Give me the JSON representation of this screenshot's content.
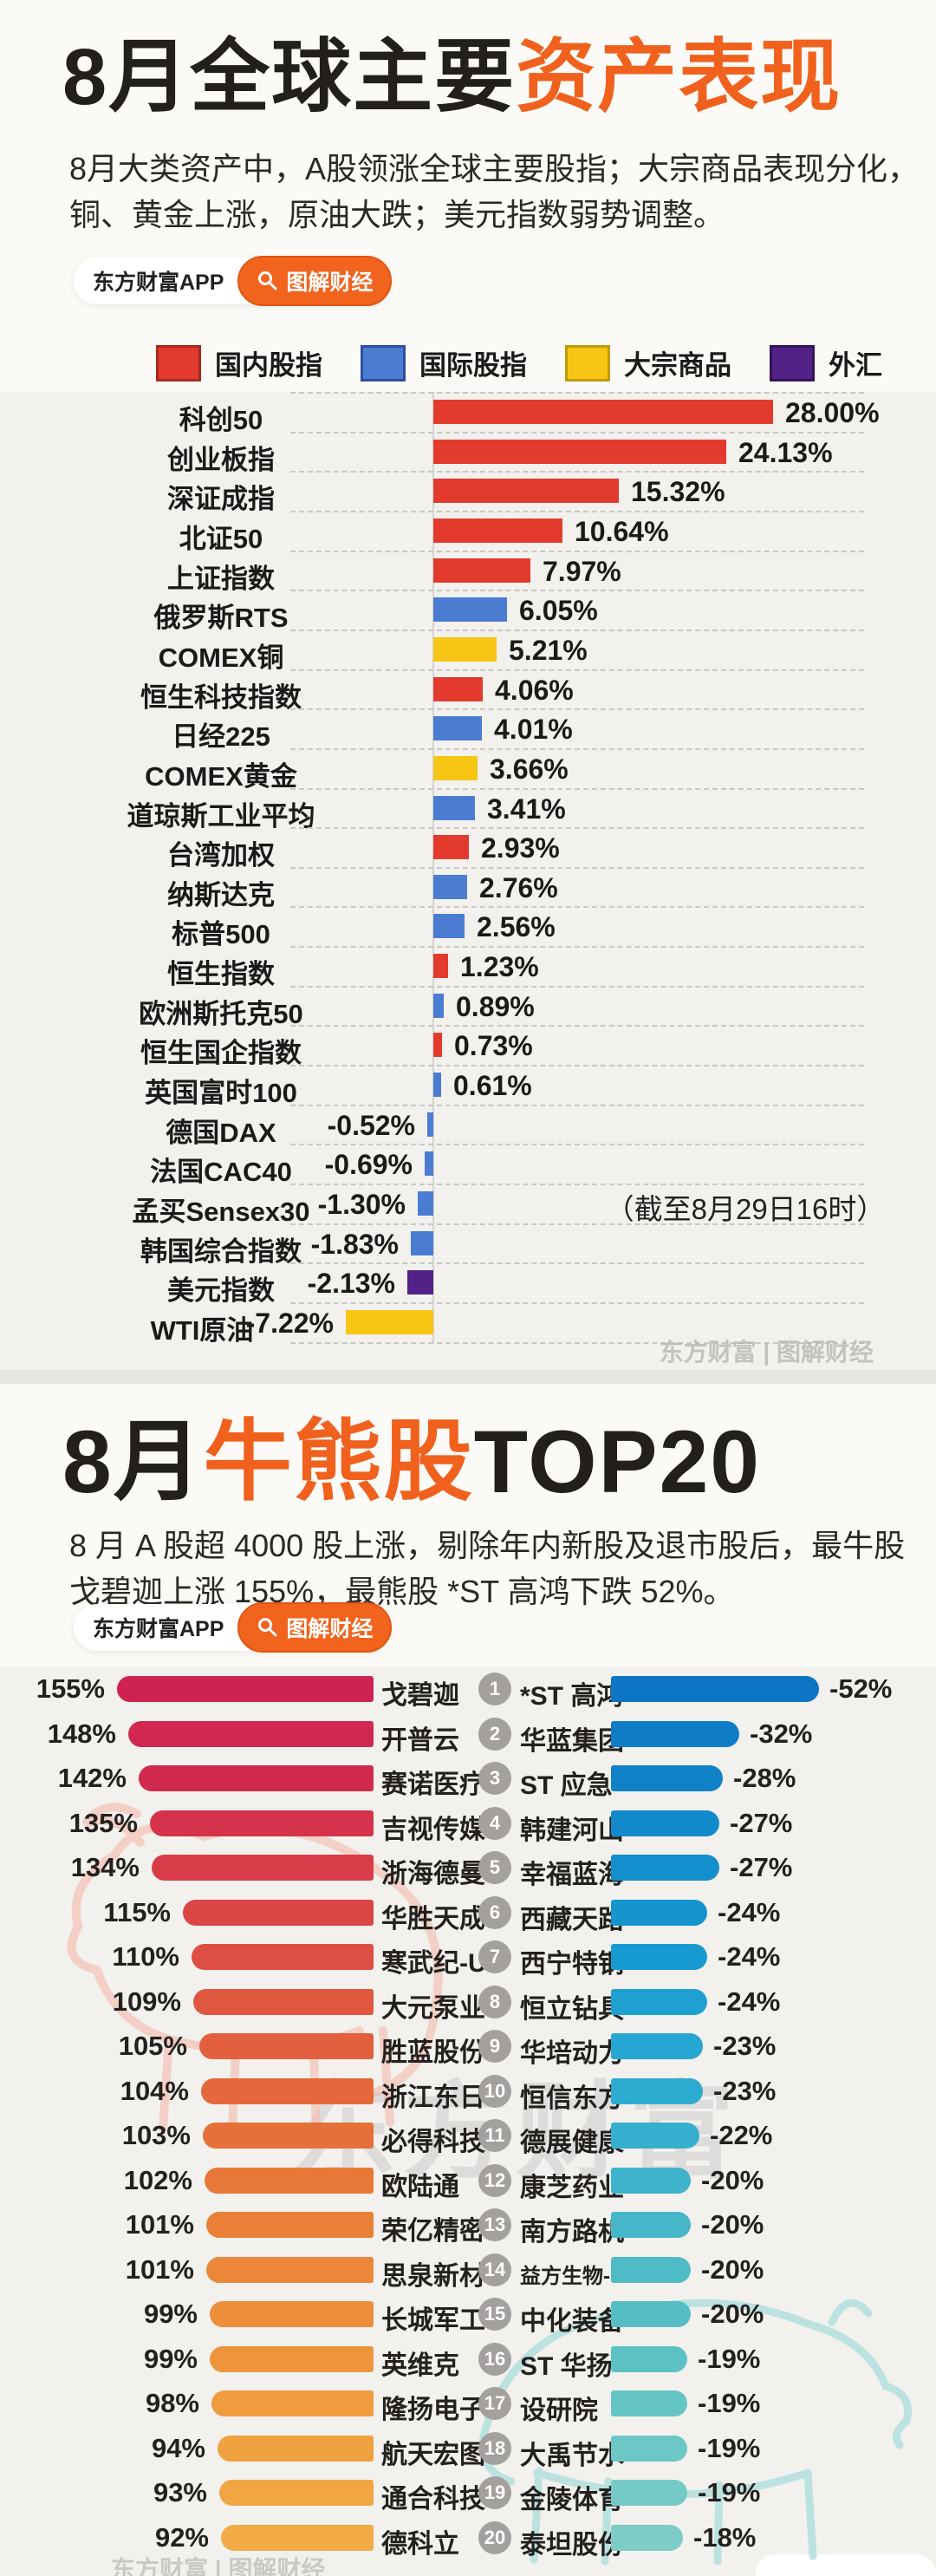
{
  "badge": {
    "app_label": "东方财富APP",
    "tag_label": "图解财经"
  },
  "section1": {
    "title_black": "8月全球主要",
    "title_orange": "资产表现",
    "subtitle_line1": "8月大类资产中，A股领涨全球主要股指；大宗商品表现分化，",
    "subtitle_line2": "铜、黄金上涨，原油大跌；美元指数弱势调整。",
    "watermark": "东方财富 | 图解财经"
  },
  "section2": {
    "title_black_pre": "8月",
    "title_orange": "牛熊股",
    "title_black_post": "TOP20",
    "subtitle_line1": "8 月 A 股超 4000 股上涨，剔除年内新股及退市股后，最牛股",
    "subtitle_line2": "戈碧迦上涨 155%，最熊股 *ST 高鸿下跌 52%。",
    "watermark_big": "东方财富",
    "watermark_small": "东方财富 | 图解财经"
  },
  "chart_data": [
    {
      "type": "bar",
      "orientation": "horizontal",
      "title": "8月全球主要资产表现",
      "unit": "%",
      "annotation": "（截至8月29日16时）",
      "legend_position": "top",
      "legend": [
        {
          "key": "domestic",
          "label": "国内股指",
          "color": "#e23b2e",
          "border": "#a8291d"
        },
        {
          "key": "international",
          "label": "国际股指",
          "color": "#4a7cd2",
          "border": "#2d4f9e"
        },
        {
          "key": "commodity",
          "label": "大宗商品",
          "color": "#f7c513",
          "border": "#c29a08"
        },
        {
          "key": "forex",
          "label": "外汇",
          "color": "#522287",
          "border": "#371458"
        }
      ],
      "items": [
        {
          "name": "科创50",
          "value": 28.0,
          "label": "28.00%",
          "category": "domestic"
        },
        {
          "name": "创业板指",
          "value": 24.13,
          "label": "24.13%",
          "category": "domestic"
        },
        {
          "name": "深证成指",
          "value": 15.32,
          "label": "15.32%",
          "category": "domestic"
        },
        {
          "name": "北证50",
          "value": 10.64,
          "label": "10.64%",
          "category": "domestic"
        },
        {
          "name": "上证指数",
          "value": 7.97,
          "label": "7.97%",
          "category": "domestic"
        },
        {
          "name": "俄罗斯RTS",
          "value": 6.05,
          "label": "6.05%",
          "category": "international"
        },
        {
          "name": "COMEX铜",
          "value": 5.21,
          "label": "5.21%",
          "category": "commodity"
        },
        {
          "name": "恒生科技指数",
          "value": 4.06,
          "label": "4.06%",
          "category": "domestic"
        },
        {
          "name": "日经225",
          "value": 4.01,
          "label": "4.01%",
          "category": "international"
        },
        {
          "name": "COMEX黄金",
          "value": 3.66,
          "label": "3.66%",
          "category": "commodity"
        },
        {
          "name": "道琼斯工业平均",
          "value": 3.41,
          "label": "3.41%",
          "category": "international"
        },
        {
          "name": "台湾加权",
          "value": 2.93,
          "label": "2.93%",
          "category": "domestic"
        },
        {
          "name": "纳斯达克",
          "value": 2.76,
          "label": "2.76%",
          "category": "international"
        },
        {
          "name": "标普500",
          "value": 2.56,
          "label": "2.56%",
          "category": "international"
        },
        {
          "name": "恒生指数",
          "value": 1.23,
          "label": "1.23%",
          "category": "domestic"
        },
        {
          "name": "欧洲斯托克50",
          "value": 0.89,
          "label": "0.89%",
          "category": "international"
        },
        {
          "name": "恒生国企指数",
          "value": 0.73,
          "label": "0.73%",
          "category": "domestic"
        },
        {
          "name": "英国富时100",
          "value": 0.61,
          "label": "0.61%",
          "category": "international"
        },
        {
          "name": "德国DAX",
          "value": -0.52,
          "label": "-0.52%",
          "category": "international"
        },
        {
          "name": "法国CAC40",
          "value": -0.69,
          "label": "-0.69%",
          "category": "international"
        },
        {
          "name": "孟买Sensex30",
          "value": -1.3,
          "label": "-1.30%",
          "category": "international"
        },
        {
          "name": "韩国综合指数",
          "value": -1.83,
          "label": "-1.83%",
          "category": "international"
        },
        {
          "name": "美元指数",
          "value": -2.13,
          "label": "-2.13%",
          "category": "forex"
        },
        {
          "name": "WTI原油",
          "value": -7.22,
          "label": "-7.22%",
          "category": "commodity"
        }
      ]
    },
    {
      "type": "bar",
      "orientation": "horizontal",
      "title": "8月牛熊股TOP20",
      "unit": "%",
      "bulls": [
        {
          "rank": 1,
          "name": "戈碧迦",
          "value": 155,
          "label": "155%",
          "color": "#ce2350"
        },
        {
          "rank": 2,
          "name": "开普云",
          "value": 148,
          "label": "148%",
          "color": "#cf2750"
        },
        {
          "rank": 3,
          "name": "赛诺医疗",
          "value": 142,
          "label": "142%",
          "color": "#d02b4e"
        },
        {
          "rank": 4,
          "name": "吉视传媒",
          "value": 135,
          "label": "135%",
          "color": "#d4334b"
        },
        {
          "rank": 5,
          "name": "浙海德曼",
          "value": 134,
          "label": "134%",
          "color": "#d73c48"
        },
        {
          "rank": 6,
          "name": "华胜天成",
          "value": 115,
          "label": "115%",
          "color": "#da4545"
        },
        {
          "rank": 7,
          "name": "寒武纪-U",
          "value": 110,
          "label": "110%",
          "color": "#dd4f42"
        },
        {
          "rank": 8,
          "name": "大元泵业",
          "value": 109,
          "label": "109%",
          "color": "#e0573f"
        },
        {
          "rank": 9,
          "name": "胜蓝股份",
          "value": 105,
          "label": "105%",
          "color": "#e2603d"
        },
        {
          "rank": 10,
          "name": "浙江东日",
          "value": 104,
          "label": "104%",
          "color": "#e4683b"
        },
        {
          "rank": 11,
          "name": "必得科技",
          "value": 103,
          "label": "103%",
          "color": "#e67039"
        },
        {
          "rank": 12,
          "name": "欧陆通",
          "value": 102,
          "label": "102%",
          "color": "#e87838"
        },
        {
          "rank": 13,
          "name": "荣亿精密",
          "value": 101,
          "label": "101%",
          "color": "#ea8038"
        },
        {
          "rank": 14,
          "name": "思泉新材",
          "value": 101,
          "label": "101%",
          "color": "#ec8739"
        },
        {
          "rank": 15,
          "name": "长城军工",
          "value": 99,
          "label": "99%",
          "color": "#ed8e3a"
        },
        {
          "rank": 16,
          "name": "英维克",
          "value": 99,
          "label": "99%",
          "color": "#ee953c"
        },
        {
          "rank": 17,
          "name": "隆扬电子",
          "value": 98,
          "label": "98%",
          "color": "#f09b3e"
        },
        {
          "rank": 18,
          "name": "航天宏图",
          "value": 94,
          "label": "94%",
          "color": "#f0a140"
        },
        {
          "rank": 19,
          "name": "通合科技",
          "value": 93,
          "label": "93%",
          "color": "#f1a643"
        },
        {
          "rank": 20,
          "name": "德科立",
          "value": 92,
          "label": "92%",
          "color": "#f2ab46"
        }
      ],
      "bears": [
        {
          "rank": 1,
          "name": "*ST 高鸿",
          "value": -52,
          "label": "-52%",
          "color": "#0d76c4"
        },
        {
          "rank": 2,
          "name": "华蓝集团",
          "value": -32,
          "label": "-32%",
          "color": "#0f7cc6"
        },
        {
          "rank": 3,
          "name": "ST 应急",
          "value": -28,
          "label": "-28%",
          "color": "#1082c8"
        },
        {
          "rank": 4,
          "name": "韩建河山",
          "value": -27,
          "label": "-27%",
          "color": "#1189ca"
        },
        {
          "rank": 5,
          "name": "幸福蓝海",
          "value": -27,
          "label": "-27%",
          "color": "#128fcc"
        },
        {
          "rank": 6,
          "name": "西藏天路",
          "value": -24,
          "label": "-24%",
          "color": "#1495ce"
        },
        {
          "rank": 7,
          "name": "西宁特钢",
          "value": -24,
          "label": "-24%",
          "color": "#189bd0"
        },
        {
          "rank": 8,
          "name": "恒立钻具",
          "value": -24,
          "label": "-24%",
          "color": "#1ea1d2"
        },
        {
          "rank": 9,
          "name": "华培动力",
          "value": -23,
          "label": "-23%",
          "color": "#26a6d2"
        },
        {
          "rank": 10,
          "name": "恒信东方",
          "value": -23,
          "label": "-23%",
          "color": "#2eabd0"
        },
        {
          "rank": 11,
          "name": "德展健康",
          "value": -22,
          "label": "-22%",
          "color": "#36afce"
        },
        {
          "rank": 12,
          "name": "康芝药业",
          "value": -20,
          "label": "-20%",
          "color": "#3eb3cb"
        },
        {
          "rank": 13,
          "name": "南方路机",
          "value": -20,
          "label": "-20%",
          "color": "#46b7c9"
        },
        {
          "rank": 14,
          "name": "益方生物-U",
          "value": -20,
          "label": "-20%",
          "color": "#4ebbc7"
        },
        {
          "rank": 15,
          "name": "中化装备",
          "value": -20,
          "label": "-20%",
          "color": "#55bec5"
        },
        {
          "rank": 16,
          "name": "ST 华扬",
          "value": -19,
          "label": "-19%",
          "color": "#5dc1c4"
        },
        {
          "rank": 17,
          "name": "设研院",
          "value": -19,
          "label": "-19%",
          "color": "#65c4c4"
        },
        {
          "rank": 18,
          "name": "大禹节水",
          "value": -19,
          "label": "-19%",
          "color": "#6dc7c5"
        },
        {
          "rank": 19,
          "name": "金陵体育",
          "value": -19,
          "label": "-19%",
          "color": "#75c9c6"
        },
        {
          "rank": 20,
          "name": "泰坦股份",
          "value": -18,
          "label": "-18%",
          "color": "#7dccc8"
        }
      ]
    }
  ]
}
